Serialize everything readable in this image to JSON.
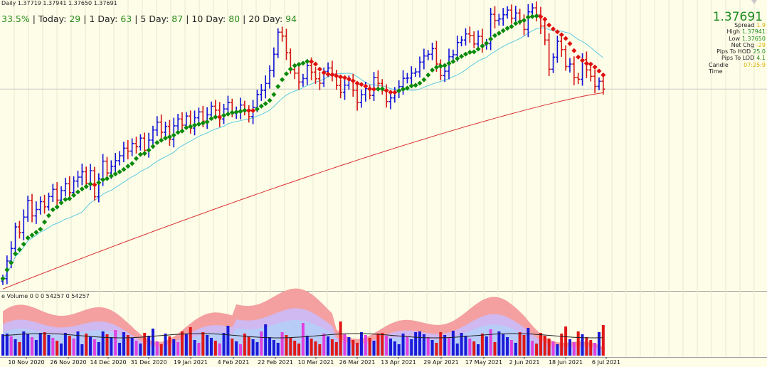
{
  "header": {
    "ohlc": "Daily  1.37719 1.37941 1.37650 1.37691",
    "pct": "33.5%",
    "stats": [
      {
        "label": "Today:",
        "value": "29"
      },
      {
        "label": "1 Day:",
        "value": "63"
      },
      {
        "label": "5 Day:",
        "value": "87"
      },
      {
        "label": "10 Day:",
        "value": "80"
      },
      {
        "label": "20 Day:",
        "value": "94"
      }
    ]
  },
  "price_panel": {
    "last": "1.37691",
    "rows": [
      {
        "k": "Spread",
        "v": "1.9",
        "yellow": true
      },
      {
        "k": "High",
        "v": "1.37941",
        "yellow": false
      },
      {
        "k": "Low",
        "v": "1.37650",
        "yellow": false
      },
      {
        "k": "Net Chg",
        "v": "-29",
        "yellow": true
      },
      {
        "k": "Pips To HOD",
        "v": "25.0",
        "yellow": false
      },
      {
        "k": "Pips To LOD",
        "v": "4.1",
        "yellow": false
      },
      {
        "k": "Candle Time",
        "v": "07:25:9",
        "yellow": true
      }
    ]
  },
  "volume_panel": {
    "title": "e Volume 0 0 0 54257 0 54257"
  },
  "colors": {
    "background": "#fefee8",
    "bull": "#1010d8",
    "bear": "#d41414",
    "ma_up": "#0a8a0a",
    "ma_down": "#e01010",
    "ma_mid": "#5ec8e0",
    "ma_slow": "#d83030",
    "vol_up": "#1a1ad8",
    "vol_down": "#e01818",
    "vol_neutral": "#e040e0",
    "band_outer": "#f4a0a0",
    "band_mid": "#d0b8f0",
    "band_inner": "#b8ccf8"
  },
  "chart_data": {
    "type": "line",
    "title": "",
    "x_tick_labels": [
      "10 Nov 2020",
      "26 Nov 2020",
      "14 Dec 2020",
      "31 Dec 2020",
      "19 Jan 2021",
      "4 Feb 2021",
      "22 Feb 2021",
      "10 Mar 2021",
      "26 Mar 2021",
      "13 Apr 2021",
      "29 Apr 2021",
      "17 May 2021",
      "2 Jun 2021",
      "18 Jun 2021",
      "6 Jul 2021"
    ],
    "y_approx_range": [
      1.294,
      1.41
    ],
    "series": [
      {
        "kind": "close",
        "values": [
          1.2987,
          1.3059,
          1.311,
          1.3198,
          1.3175,
          1.3238,
          1.3306,
          1.3243,
          1.3269,
          1.3301,
          1.328,
          1.3322,
          1.3351,
          1.3307,
          1.3346,
          1.3374,
          1.3338,
          1.3385,
          1.3401,
          1.3423,
          1.3376,
          1.3427,
          1.3321,
          1.3394,
          1.3466,
          1.3418,
          1.3445,
          1.3468,
          1.3488,
          1.3519,
          1.3507,
          1.3538,
          1.3525,
          1.356,
          1.351,
          1.3552,
          1.3593,
          1.3625,
          1.3584,
          1.3608,
          1.3555,
          1.361,
          1.3638,
          1.3613,
          1.365,
          1.3601,
          1.3643,
          1.3667,
          1.3629,
          1.3655,
          1.369,
          1.3674,
          1.3638,
          1.3679,
          1.3705,
          1.3661,
          1.3666,
          1.3695,
          1.367,
          1.3648,
          1.3685,
          1.3738,
          1.3755,
          1.3783,
          1.3836,
          1.3902,
          1.3992,
          1.3976,
          1.3908,
          1.384,
          1.3825,
          1.3789,
          1.3803,
          1.3856,
          1.3829,
          1.3802,
          1.3784,
          1.3832,
          1.3846,
          1.3821,
          1.3775,
          1.3747,
          1.3776,
          1.3796,
          1.3755,
          1.3705,
          1.3737,
          1.3762,
          1.3734,
          1.3807,
          1.3783,
          1.3755,
          1.3709,
          1.3724,
          1.3749,
          1.377,
          1.3804,
          1.3805,
          1.3825,
          1.383,
          1.387,
          1.3895,
          1.3902,
          1.3925,
          1.3862,
          1.3815,
          1.3833,
          1.3892,
          1.39,
          1.395,
          1.396,
          1.3985,
          1.3978,
          1.3944,
          1.3975,
          1.394,
          1.3945,
          1.4065,
          1.404,
          1.4046,
          1.4063,
          1.4082,
          1.4049,
          1.407,
          1.404,
          1.4003,
          1.4075,
          1.4091,
          1.4062,
          1.4017,
          1.396,
          1.3841,
          1.389,
          1.3955,
          1.3921,
          1.3852,
          1.3862,
          1.3807,
          1.38,
          1.388,
          1.3838,
          1.3812,
          1.3771,
          1.3792,
          1.376
        ]
      },
      {
        "kind": "ma_fast_colored",
        "note": "green when rising, red when falling"
      },
      {
        "kind": "ma_mid"
      },
      {
        "kind": "ma_slow"
      }
    ]
  }
}
